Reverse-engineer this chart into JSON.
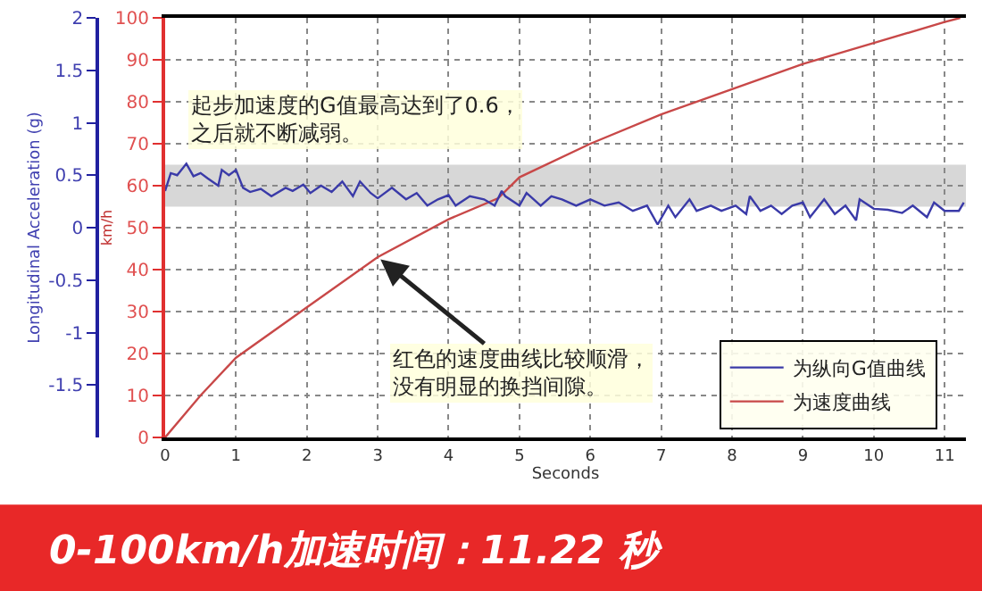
{
  "chart_data": {
    "type": "line",
    "title": "0-100km/h加速时间：11.22 秒",
    "xlabel": "Seconds",
    "ylabel": "km/h",
    "y2label": "Longitudinal Acceleration (g)",
    "xlim": [
      0,
      11.3
    ],
    "xticks": [
      0,
      1,
      2,
      3,
      4,
      5,
      6,
      7,
      8,
      9,
      10,
      11
    ],
    "ylim": [
      0,
      100
    ],
    "yticks": [
      0,
      10,
      20,
      30,
      40,
      50,
      60,
      70,
      80,
      90,
      100
    ],
    "y2lim": [
      -2,
      2
    ],
    "y2ticks": [
      -1.5,
      -1,
      -0.5,
      0,
      0.5,
      1,
      1.5,
      2
    ],
    "series": [
      {
        "name": "为纵向G值曲线",
        "color": "#3a3aa8",
        "axis": "y2",
        "x": [
          0,
          0.08,
          0.17,
          0.3,
          0.4,
          0.5,
          0.6,
          0.75,
          0.8,
          0.9,
          1.0,
          1.1,
          1.2,
          1.35,
          1.5,
          1.7,
          1.8,
          1.95,
          2.05,
          2.2,
          2.35,
          2.5,
          2.65,
          2.75,
          2.9,
          3.0,
          3.2,
          3.4,
          3.55,
          3.7,
          3.85,
          4.0,
          4.1,
          4.3,
          4.5,
          4.65,
          4.75,
          4.8,
          5.0,
          5.1,
          5.3,
          5.45,
          5.6,
          5.8,
          6.0,
          6.2,
          6.4,
          6.6,
          6.8,
          6.95,
          7.1,
          7.2,
          7.4,
          7.5,
          7.7,
          7.85,
          8.05,
          8.2,
          8.25,
          8.4,
          8.55,
          8.7,
          8.85,
          9.0,
          9.1,
          9.3,
          9.45,
          9.6,
          9.75,
          9.8,
          10.0,
          10.2,
          10.4,
          10.55,
          10.75,
          10.85,
          11.0,
          11.2,
          11.27
        ],
        "values": [
          0.35,
          0.52,
          0.5,
          0.61,
          0.49,
          0.52,
          0.47,
          0.4,
          0.55,
          0.5,
          0.55,
          0.38,
          0.34,
          0.37,
          0.3,
          0.38,
          0.35,
          0.41,
          0.33,
          0.4,
          0.34,
          0.44,
          0.3,
          0.44,
          0.33,
          0.28,
          0.38,
          0.27,
          0.33,
          0.21,
          0.27,
          0.31,
          0.21,
          0.3,
          0.27,
          0.21,
          0.35,
          0.3,
          0.21,
          0.33,
          0.21,
          0.3,
          0.27,
          0.21,
          0.27,
          0.21,
          0.24,
          0.16,
          0.21,
          0.03,
          0.21,
          0.1,
          0.27,
          0.16,
          0.21,
          0.16,
          0.21,
          0.13,
          0.3,
          0.16,
          0.21,
          0.13,
          0.21,
          0.24,
          0.1,
          0.27,
          0.13,
          0.21,
          0.07,
          0.27,
          0.18,
          0.17,
          0.14,
          0.21,
          0.1,
          0.24,
          0.16,
          0.16,
          0.24
        ]
      },
      {
        "name": "为速度曲线",
        "color": "#c84848",
        "x": [
          0,
          0.5,
          1,
          2,
          3,
          4,
          4.7,
          5,
          6,
          7,
          8,
          9,
          10,
          11,
          11.22
        ],
        "values": [
          0,
          10,
          19,
          31,
          43,
          52,
          57,
          62,
          70,
          77,
          83,
          89,
          94,
          99,
          100
        ]
      }
    ],
    "bands": [
      {
        "axis": "y2",
        "from": 0.2,
        "to": 0.6,
        "color": "#d3d3d3"
      }
    ],
    "annotations": [
      "起步加速度的G值最高达到了0.6，之后就不断减弱。",
      {
        "text": "红色的速度曲线比较顺滑，没有明显的换挡间隙。",
        "x": 3,
        "y": 43
      }
    ],
    "grid": true,
    "legend": "bottom right",
    "line_style": "solid",
    "marker": "none"
  }
}
